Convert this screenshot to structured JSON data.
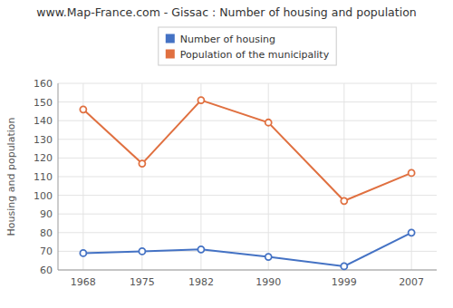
{
  "chart_data": {
    "type": "line",
    "title": "www.Map-France.com - Gissac : Number of housing and population",
    "y_label": "Housing and population",
    "x": [
      1968,
      1975,
      1982,
      1990,
      1999,
      2007
    ],
    "series": [
      {
        "name": "Number of housing",
        "color": "#4472c4",
        "marker": "circle",
        "values": [
          69,
          70,
          71,
          67,
          62,
          80
        ]
      },
      {
        "name": "Population of the municipality",
        "color": "#e07040",
        "marker": "circle",
        "values": [
          146,
          117,
          151,
          139,
          97,
          112
        ]
      }
    ],
    "xlim": [
      1965,
      2010
    ],
    "xticks": [
      1968,
      1975,
      1982,
      1990,
      1999,
      2007
    ],
    "ylim": [
      60,
      160
    ],
    "yticks": [
      60,
      70,
      80,
      90,
      100,
      110,
      120,
      130,
      140,
      150,
      160
    ],
    "grid": true,
    "legend": "top"
  }
}
